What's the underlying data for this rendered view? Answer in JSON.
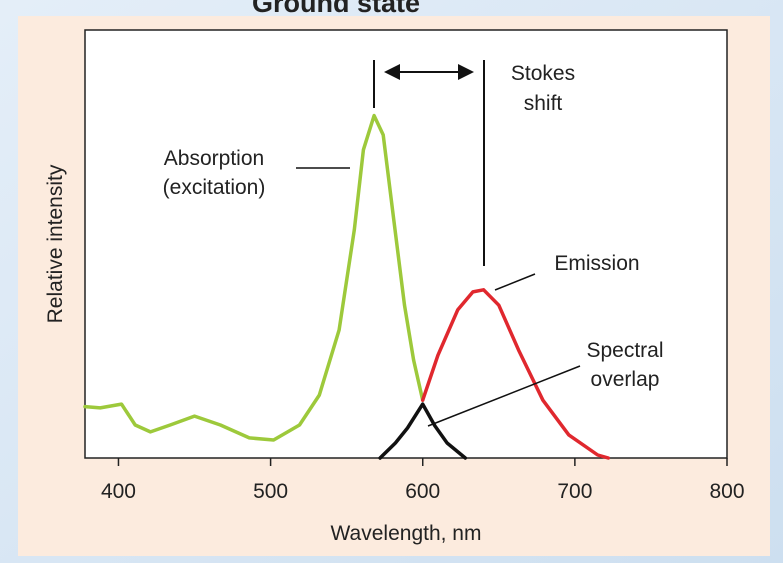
{
  "chart_data": {
    "type": "line",
    "cut_title": "Ground state",
    "xlabel": "Wavelength, nm",
    "ylabel": "Relative intensity",
    "xlim": [
      378,
      800
    ],
    "xticks": [
      400,
      500,
      600,
      700,
      800
    ],
    "ylim": [
      0,
      1
    ],
    "series": [
      {
        "color": "#9dc93b",
        "x": [
          378,
          388,
          402,
          411,
          421,
          434,
          450,
          467,
          486,
          502,
          519,
          532,
          545,
          555,
          561,
          568,
          574,
          581,
          588,
          594,
          600
        ],
        "values": [
          0.12,
          0.117,
          0.126,
          0.077,
          0.061,
          0.077,
          0.098,
          0.077,
          0.047,
          0.042,
          0.077,
          0.147,
          0.299,
          0.533,
          0.72,
          0.8,
          0.755,
          0.556,
          0.357,
          0.229,
          0.135
        ]
      },
      {
        "color": "#e0282e",
        "x": [
          600,
          610,
          623,
          633,
          640,
          650,
          663,
          679,
          696,
          715,
          722
        ],
        "values": [
          0.135,
          0.24,
          0.346,
          0.388,
          0.393,
          0.357,
          0.252,
          0.135,
          0.054,
          0.007,
          0
        ]
      },
      {
        "color": "#111111",
        "x": [
          572,
          582,
          590,
          600,
          608,
          616,
          628
        ],
        "values": [
          0,
          0.035,
          0.07,
          0.126,
          0.075,
          0.035,
          0
        ]
      }
    ],
    "annotations": [
      {
        "lines": [
          "Absorption",
          "(excitation)"
        ]
      },
      {
        "lines": [
          "Stokes",
          "shift"
        ]
      },
      {
        "lines": [
          "Emission"
        ]
      },
      {
        "lines": [
          "Spectral",
          "overlap"
        ]
      }
    ]
  }
}
